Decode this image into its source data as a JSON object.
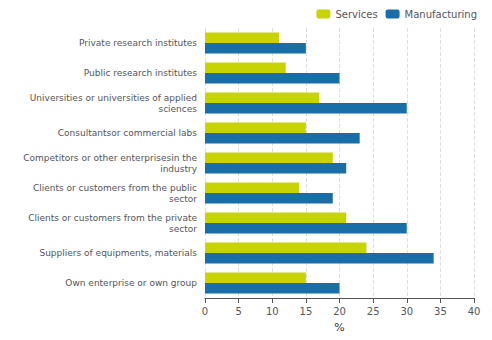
{
  "chart_data": {
    "type": "bar",
    "orientation": "horizontal",
    "xlabel": "%",
    "categories": [
      "Own enterprise or own group",
      "Suppliers of equipments, materials",
      "Clients or customers from the private\nsector",
      "Clients or customers from the public\nsector",
      "Competitors or other enterprisesin the\nindustry",
      "Consultantsor commercial labs",
      "Universities or universities of applied\nsciences",
      "Public research institutes",
      "Private research institutes"
    ],
    "series": [
      {
        "name": "Services",
        "color": "#c8d400",
        "values": [
          15,
          24,
          21,
          14,
          19,
          15,
          17,
          12,
          11
        ]
      },
      {
        "name": "Manufacturing",
        "color": "#1a6ea8",
        "values": [
          20,
          34,
          30,
          19,
          21,
          23,
          30,
          20,
          15
        ]
      }
    ],
    "xlim": [
      0,
      40
    ],
    "xticks": [
      0,
      5,
      10,
      15,
      20,
      25,
      30,
      35,
      40
    ],
    "grid": true,
    "legend": "upper right"
  }
}
